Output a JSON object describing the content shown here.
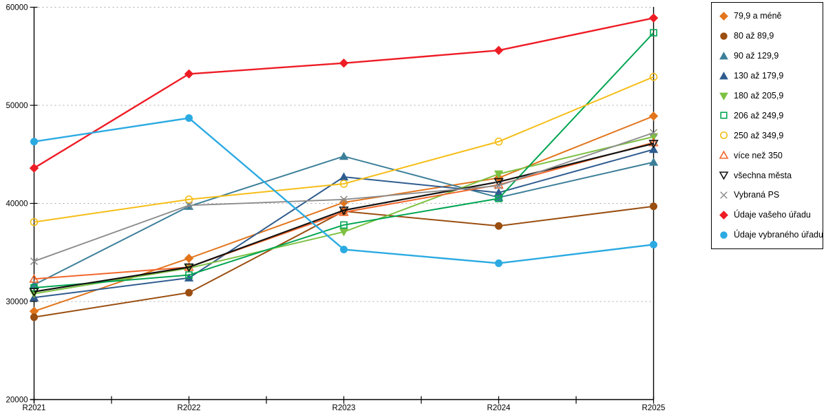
{
  "chart_data": {
    "type": "line",
    "title": "",
    "xlabel": "",
    "ylabel": "",
    "categories": [
      "R2021",
      "R2022",
      "R2023",
      "R2024",
      "R2025"
    ],
    "ylim": [
      20000,
      60000
    ],
    "y_ticks": [
      20000,
      30000,
      40000,
      50000,
      60000
    ],
    "y_tick_labels": [
      "20000",
      "30000",
      "40000",
      "50000",
      "60000"
    ],
    "grid": "horizontal-dotted",
    "grid_color": "#aaaaaa",
    "axis_color": "#000000",
    "legend_position": "right-box",
    "series": [
      {
        "name": "79,9 a méně",
        "marker": "diamond",
        "filled": true,
        "color": "#e2751c",
        "lw": 2,
        "values": [
          29000,
          34400,
          40100,
          42600,
          48900
        ]
      },
      {
        "name": "80 až 89,9",
        "marker": "circle",
        "filled": true,
        "color": "#9a4e10",
        "lw": 2,
        "values": [
          28400,
          30900,
          39200,
          37700,
          39700
        ]
      },
      {
        "name": "90 až 129,9",
        "marker": "triangle-up",
        "filled": true,
        "color": "#3c7f99",
        "lw": 2,
        "values": [
          31700,
          39700,
          44800,
          40600,
          44200
        ]
      },
      {
        "name": "130 až 179,9",
        "marker": "triangle-up",
        "filled": true,
        "color": "#2f5c8f",
        "lw": 2,
        "values": [
          30400,
          32400,
          42700,
          41100,
          45500
        ]
      },
      {
        "name": "180 až 205,9",
        "marker": "triangle-down",
        "filled": true,
        "color": "#7cc142",
        "lw": 2,
        "values": [
          30800,
          33400,
          37100,
          43000,
          46800
        ]
      },
      {
        "name": "206 až 249,9",
        "marker": "square",
        "filled": false,
        "color": "#00a551",
        "lw": 2,
        "values": [
          31400,
          32700,
          37800,
          40500,
          57400
        ]
      },
      {
        "name": "250 až 349,9",
        "marker": "circle",
        "filled": false,
        "color": "#f5bd16",
        "lw": 2,
        "values": [
          38100,
          40400,
          42000,
          46300,
          52900
        ]
      },
      {
        "name": "více než 350",
        "marker": "triangle-up",
        "filled": false,
        "color": "#f2662b",
        "lw": 2,
        "values": [
          32300,
          33500,
          39100,
          41900,
          46200
        ]
      },
      {
        "name": "všechna města",
        "marker": "triangle-down",
        "filled": false,
        "color": "#111111",
        "lw": 2.2,
        "values": [
          31000,
          33500,
          39300,
          42200,
          46100
        ]
      },
      {
        "name": "Vybraná PS",
        "marker": "x",
        "filled": false,
        "color": "#8c8c8c",
        "lw": 1.9,
        "values": [
          34100,
          39800,
          40400,
          41800,
          47200
        ]
      },
      {
        "name": "Údaje vašeho úřadu",
        "marker": "diamond",
        "filled": true,
        "color": "#ee1c25",
        "lw": 2.4,
        "values": [
          43600,
          53200,
          54300,
          55600,
          58900
        ]
      },
      {
        "name": "Údaje vybraného úřadu",
        "marker": "circle",
        "filled": true,
        "color": "#2baae2",
        "lw": 2.4,
        "values": [
          46300,
          48700,
          35300,
          33900,
          35800
        ]
      }
    ]
  }
}
